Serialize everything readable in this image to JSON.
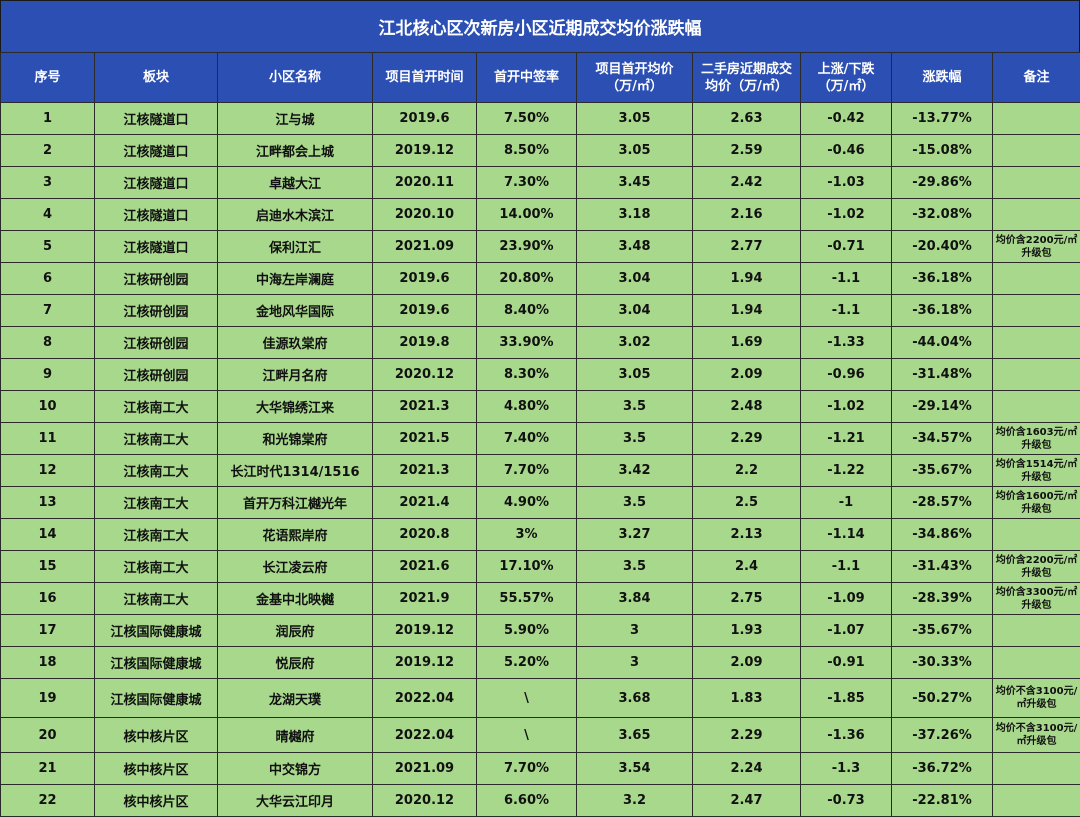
{
  "title": "江北核心区次新房小区近期成交均价涨跌幅",
  "headers": [
    "序号",
    "板块",
    "小区名称",
    "项目首开时间",
    "首开中签率",
    "项目首开均价\n（万/㎡）",
    "二手房近期成交\n均价（万/㎡）",
    "上涨/下跌\n（万/㎡）",
    "涨跌幅",
    "备注"
  ],
  "rows": [
    [
      "1",
      "江核隧道口",
      "江与城",
      "2019.6",
      "7.50%",
      "3.05",
      "2.63",
      "-0.42",
      "-13.77%",
      ""
    ],
    [
      "2",
      "江核隧道口",
      "江畔都会上城",
      "2019.12",
      "8.50%",
      "3.05",
      "2.59",
      "-0.46",
      "-15.08%",
      ""
    ],
    [
      "3",
      "江核隧道口",
      "卓越大江",
      "2020.11",
      "7.30%",
      "3.45",
      "2.42",
      "-1.03",
      "-29.86%",
      ""
    ],
    [
      "4",
      "江核隧道口",
      "启迪水木滨江",
      "2020.10",
      "14.00%",
      "3.18",
      "2.16",
      "-1.02",
      "-32.08%",
      ""
    ],
    [
      "5",
      "江核隧道口",
      "保利江汇",
      "2021.09",
      "23.90%",
      "3.48",
      "2.77",
      "-0.71",
      "-20.40%",
      "均价含2200元/㎡升级包"
    ],
    [
      "6",
      "江核研创园",
      "中海左岸澜庭",
      "2019.6",
      "20.80%",
      "3.04",
      "1.94",
      "-1.1",
      "-36.18%",
      ""
    ],
    [
      "7",
      "江核研创园",
      "金地风华国际",
      "2019.6",
      "8.40%",
      "3.04",
      "1.94",
      "-1.1",
      "-36.18%",
      ""
    ],
    [
      "8",
      "江核研创园",
      "佳源玖棠府",
      "2019.8",
      "33.90%",
      "3.02",
      "1.69",
      "-1.33",
      "-44.04%",
      ""
    ],
    [
      "9",
      "江核研创园",
      "江畔月名府",
      "2020.12",
      "8.30%",
      "3.05",
      "2.09",
      "-0.96",
      "-31.48%",
      ""
    ],
    [
      "10",
      "江核南工大",
      "大华锦绣江来",
      "2021.3",
      "4.80%",
      "3.5",
      "2.48",
      "-1.02",
      "-29.14%",
      ""
    ],
    [
      "11",
      "江核南工大",
      "和光锦棠府",
      "2021.5",
      "7.40%",
      "3.5",
      "2.29",
      "-1.21",
      "-34.57%",
      "均价含1603元/㎡升级包"
    ],
    [
      "12",
      "江核南工大",
      "长江时代1314/1516",
      "2021.3",
      "7.70%",
      "3.42",
      "2.2",
      "-1.22",
      "-35.67%",
      "均价含1514元/㎡升级包"
    ],
    [
      "13",
      "江核南工大",
      "首开万科江樾光年",
      "2021.4",
      "4.90%",
      "3.5",
      "2.5",
      "-1",
      "-28.57%",
      "均价含1600元/㎡升级包"
    ],
    [
      "14",
      "江核南工大",
      "花语熙岸府",
      "2020.8",
      "3%",
      "3.27",
      "2.13",
      "-1.14",
      "-34.86%",
      ""
    ],
    [
      "15",
      "江核南工大",
      "长江凌云府",
      "2021.6",
      "17.10%",
      "3.5",
      "2.4",
      "-1.1",
      "-31.43%",
      "均价含2200元/㎡升级包"
    ],
    [
      "16",
      "江核南工大",
      "金基中北映樾",
      "2021.9",
      "55.57%",
      "3.84",
      "2.75",
      "-1.09",
      "-28.39%",
      "均价含3300元/㎡升级包"
    ],
    [
      "17",
      "江核国际健康城",
      "润辰府",
      "2019.12",
      "5.90%",
      "3",
      "1.93",
      "-1.07",
      "-35.67%",
      ""
    ],
    [
      "18",
      "江核国际健康城",
      "悦辰府",
      "2019.12",
      "5.20%",
      "3",
      "2.09",
      "-0.91",
      "-30.33%",
      ""
    ],
    [
      "19",
      "江核国际健康城",
      "龙湖天璞",
      "2022.04",
      "\\",
      "3.68",
      "1.83",
      "-1.85",
      "-50.27%",
      "均价不含3100元/㎡升级包"
    ],
    [
      "20",
      "核中核片区",
      "晴樾府",
      "2022.04",
      "\\",
      "3.65",
      "2.29",
      "-1.36",
      "-37.26%",
      "均价不含3100元/㎡升级包"
    ],
    [
      "21",
      "核中核片区",
      "中交锦方",
      "2021.09",
      "7.70%",
      "3.54",
      "2.24",
      "-1.3",
      "-36.72%",
      ""
    ],
    [
      "22",
      "核中核片区",
      "大华云江印月",
      "2020.12",
      "6.60%",
      "3.2",
      "2.47",
      "-0.73",
      "-22.81%",
      ""
    ]
  ]
}
